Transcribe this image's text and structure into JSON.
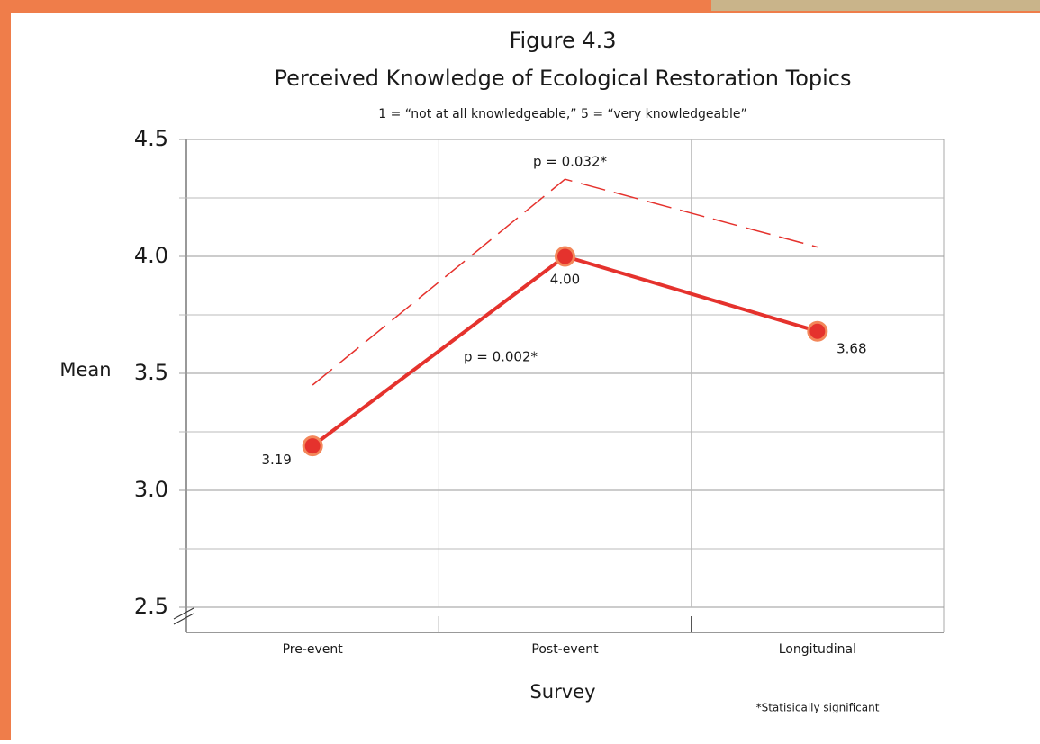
{
  "chart_data": {
    "type": "line",
    "title": "Figure 4.3",
    "subtitle": "Perceived Knowledge of Ecological Restoration Topics",
    "note": "1 = “not at all knowledgeable,”  5 = “very knowledgeable”",
    "y_label": "Mean",
    "x_label": "Survey",
    "footnote": "*Statisically significant",
    "categories": [
      "Pre-event",
      "Post-event",
      "Longitudinal"
    ],
    "series": [
      {
        "color": "#e5322d",
        "values": [
          3.19,
          4,
          3.68
        ],
        "value_labels": [
          "3.19",
          "4.00",
          "3.68"
        ]
      },
      {
        "color": "#e5322d",
        "dashed": true,
        "values": [
          3.45,
          4.33,
          4.04
        ]
      }
    ],
    "annotations": [
      "p = 0.032*",
      "p = 0.002*"
    ],
    "ylim": [
      2.5,
      4.5
    ],
    "yticks": [
      2.5,
      {
        "value": 3,
        "label": "3.0"
      },
      3.5,
      {
        "value": 4,
        "label": "4.0"
      },
      4.5
    ],
    "minor_yticks": [
      2.75,
      3.25,
      3.75,
      4.25
    ],
    "grid": true
  }
}
